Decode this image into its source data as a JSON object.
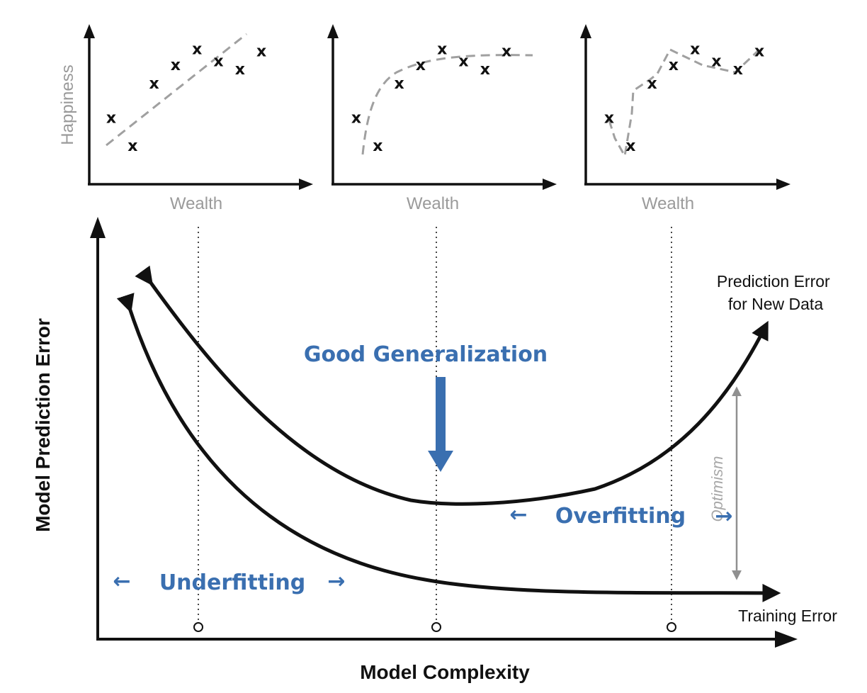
{
  "panels": [
    {
      "ylabel": "Happiness",
      "xlabel": "Wealth",
      "fit": "linear",
      "points": [
        [
          1,
          2.2
        ],
        [
          2,
          0.8
        ],
        [
          3,
          3.9
        ],
        [
          4,
          4.8
        ],
        [
          5,
          5.6
        ],
        [
          6,
          5
        ],
        [
          7,
          4.6
        ],
        [
          8,
          5.5
        ]
      ]
    },
    {
      "ylabel": "",
      "xlabel": "Wealth",
      "fit": "smooth",
      "points": [
        [
          1,
          2.2
        ],
        [
          2,
          0.8
        ],
        [
          3,
          3.9
        ],
        [
          4,
          4.8
        ],
        [
          5,
          5.6
        ],
        [
          6,
          5
        ],
        [
          7,
          4.6
        ],
        [
          8,
          5.5
        ]
      ]
    },
    {
      "ylabel": "",
      "xlabel": "Wealth",
      "fit": "interpolating",
      "points": [
        [
          1,
          2.2
        ],
        [
          2,
          0.8
        ],
        [
          3,
          3.9
        ],
        [
          4,
          4.8
        ],
        [
          5,
          5.6
        ],
        [
          6,
          5
        ],
        [
          7,
          4.6
        ],
        [
          8,
          5.5
        ]
      ]
    }
  ],
  "main": {
    "ylabel": "Model Prediction Error",
    "xlabel": "Model Complexity",
    "curve_test_label_line1": "Prediction Error",
    "curve_test_label_line2": "for New Data",
    "curve_train_label": "Training Error",
    "optimism_label": "Optimism",
    "good_generalization": "Good Generalization",
    "overfitting": "Overfitting",
    "underfitting": "Underfitting",
    "arrow_left_glyph": "←",
    "arrow_right_glyph": "→"
  },
  "colors": {
    "accent_blue": "#3a6fb0",
    "axis_black": "#111111",
    "fit_gray": "#a0a0a0",
    "label_gray": "#9a9a9a"
  }
}
